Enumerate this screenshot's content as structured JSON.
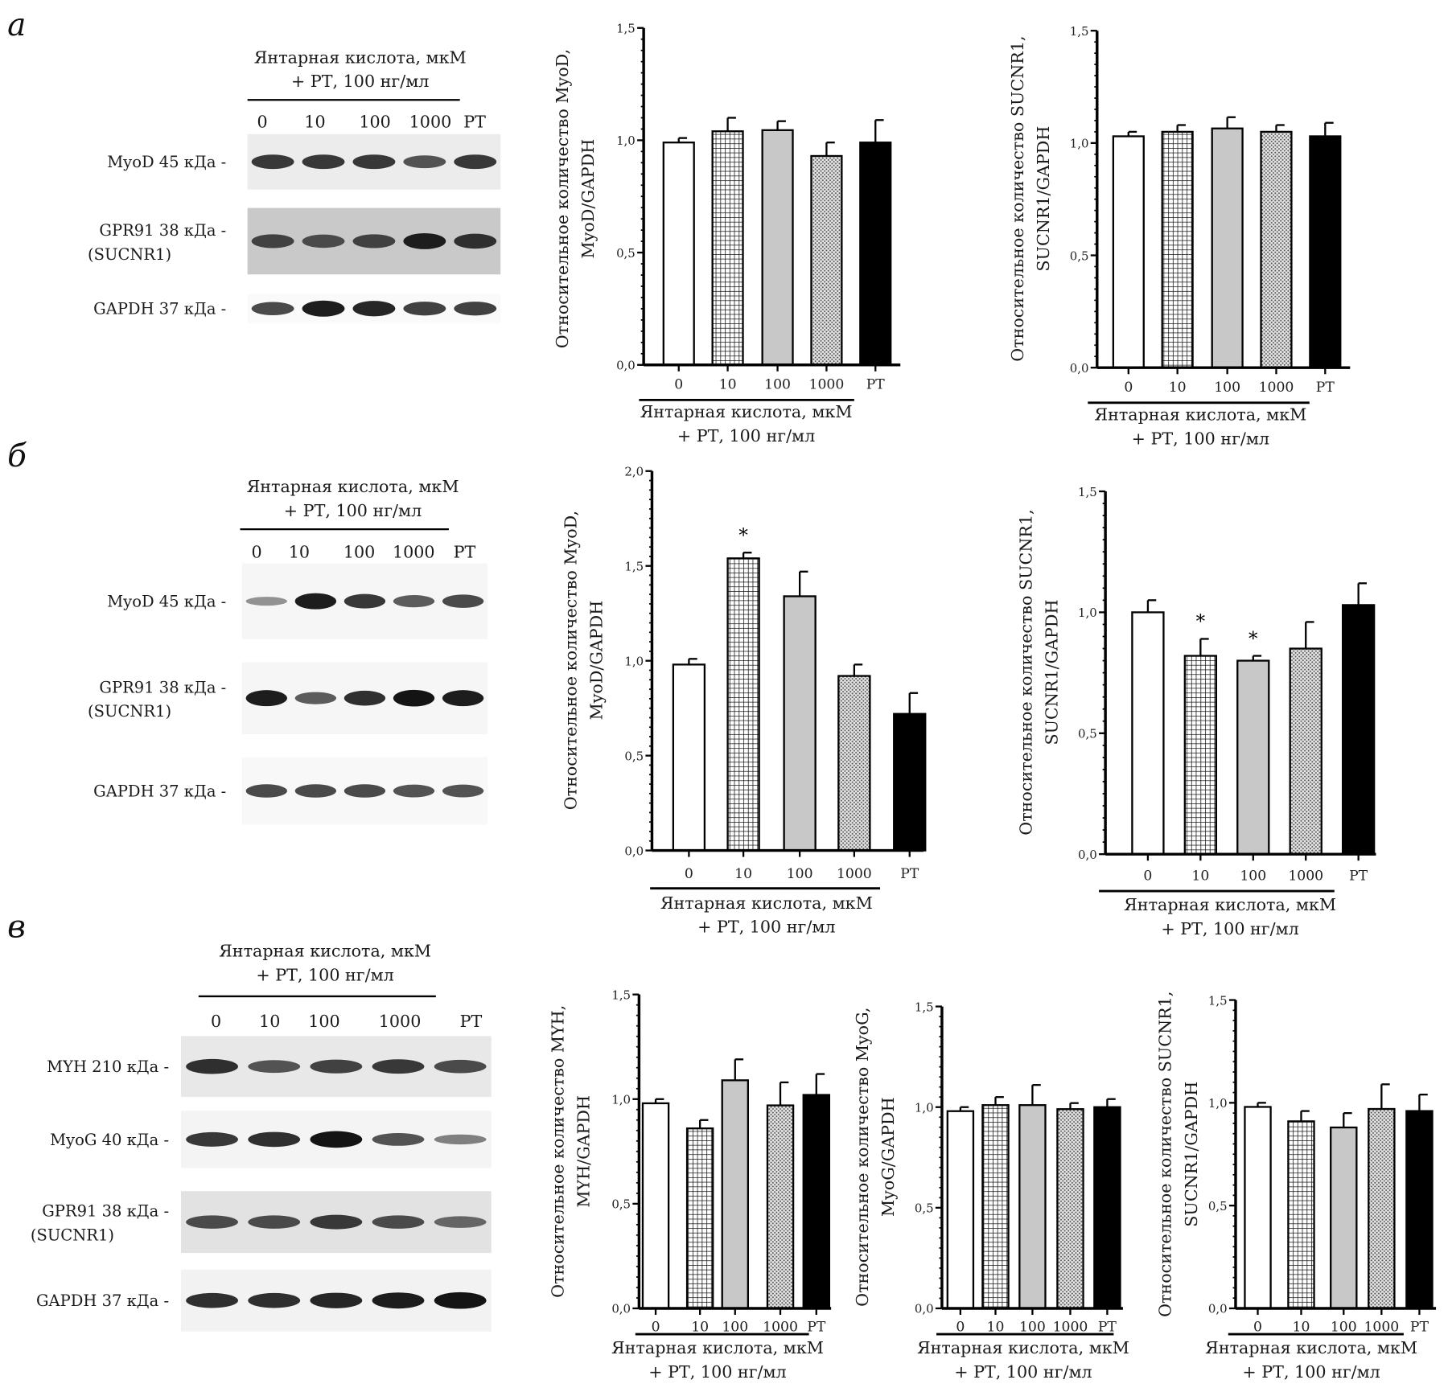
{
  "colors": {
    "bar_white": "#ffffff",
    "bar_gray": "#c8c8c8",
    "bar_black": "#000000",
    "axis": "#000000",
    "blot_bg": "#e6e6e6",
    "band": "#1e1e1e"
  },
  "bar_fills": [
    "white",
    "crosshatch",
    "light-gray",
    "dotted",
    "black"
  ],
  "panels": [
    {
      "letter": "а",
      "blot": {
        "heading": [
          "Янтарная кислота, мкМ",
          "+ РТ, 100 нг/мл"
        ],
        "lanes": [
          "0",
          "10",
          "100",
          "1000",
          "РТ"
        ],
        "rows": [
          {
            "label": [
              "MyoD 45 кДа -"
            ]
          },
          {
            "label": [
              "GPR91 38 кДа -",
              "(SUCNR1)"
            ]
          },
          {
            "label": [
              "GAPDH 37 кДа -"
            ]
          }
        ]
      }
    },
    {
      "letter": "б",
      "blot": {
        "heading": [
          "Янтарная кислота, мкМ",
          "+ РТ, 100 нг/мл"
        ],
        "lanes": [
          "0",
          "10",
          "100",
          "1000",
          "РТ"
        ],
        "rows": [
          {
            "label": [
              "MyoD 45 кДа -"
            ]
          },
          {
            "label": [
              "GPR91 38 кДа -",
              "(SUCNR1)"
            ]
          },
          {
            "label": [
              "GAPDH 37 кДа -"
            ]
          }
        ]
      }
    },
    {
      "letter": "в",
      "blot": {
        "heading": [
          "Янтарная кислота, мкМ",
          "+ РТ, 100 нг/мл"
        ],
        "lanes": [
          "0",
          "10",
          "100",
          "1000",
          "РТ"
        ],
        "rows": [
          {
            "label": [
              "MYH 210 кДа -"
            ]
          },
          {
            "label": [
              "MyoG 40 кДа -"
            ]
          },
          {
            "label": [
              "GPR91 38 кДа -",
              "(SUCNR1)"
            ]
          },
          {
            "label": [
              "GAPDH 37 кДа -"
            ]
          }
        ]
      }
    }
  ],
  "chart_data": [
    {
      "type": "bar",
      "panel": "а",
      "categories": [
        "0",
        "10",
        "100",
        "1000",
        "РТ"
      ],
      "values": [
        0.99,
        1.04,
        1.045,
        0.93,
        0.99
      ],
      "errors": [
        0.02,
        0.06,
        0.04,
        0.06,
        0.1
      ],
      "significance": [
        "",
        "",
        "",
        "",
        ""
      ],
      "ylabel": [
        "Относительное количество MyoD,",
        "MyoD/GAPDH"
      ],
      "xlabel": [
        "Янтарная кислота, мкМ",
        "+ РТ, 100 нг/мл"
      ],
      "yticks": [
        "0,0",
        "0,5",
        "1,0",
        "1,5"
      ],
      "ylim": [
        0,
        1.5
      ]
    },
    {
      "type": "bar",
      "panel": "а",
      "categories": [
        "0",
        "10",
        "100",
        "1000",
        "РТ"
      ],
      "values": [
        1.03,
        1.05,
        1.065,
        1.05,
        1.03
      ],
      "errors": [
        0.02,
        0.03,
        0.05,
        0.03,
        0.06
      ],
      "significance": [
        "",
        "",
        "",
        "",
        ""
      ],
      "ylabel": [
        "Относительное количество SUCNR1,",
        "SUCNR1/GAPDH"
      ],
      "xlabel": [
        "Янтарная кислота, мкМ",
        "+ РТ, 100 нг/мл"
      ],
      "yticks": [
        "0,0",
        "0,5",
        "1,0",
        "1,5"
      ],
      "ylim": [
        0,
        1.5
      ]
    },
    {
      "type": "bar",
      "panel": "б",
      "categories": [
        "0",
        "10",
        "100",
        "1000",
        "РТ"
      ],
      "values": [
        0.98,
        1.54,
        1.34,
        0.92,
        0.72
      ],
      "errors": [
        0.03,
        0.03,
        0.13,
        0.06,
        0.11
      ],
      "significance": [
        "",
        "*",
        "",
        "",
        ""
      ],
      "ylabel": [
        "Относительное количество MyoD,",
        "MyoD/GAPDH"
      ],
      "xlabel": [
        "Янтарная кислота, мкМ",
        "+ РТ, 100 нг/мл"
      ],
      "yticks": [
        "0,0",
        "0,5",
        "1,0",
        "1,5",
        "2,0"
      ],
      "ylim": [
        0,
        2.0
      ]
    },
    {
      "type": "bar",
      "panel": "б",
      "categories": [
        "0",
        "10",
        "100",
        "1000",
        "РТ"
      ],
      "values": [
        1.0,
        0.82,
        0.8,
        0.85,
        1.03
      ],
      "errors": [
        0.05,
        0.07,
        0.02,
        0.11,
        0.09
      ],
      "significance": [
        "",
        "*",
        "*",
        "",
        ""
      ],
      "ylabel": [
        "Относительное количество SUCNR1,",
        "SUCNR1/GAPDH"
      ],
      "xlabel": [
        "Янтарная кислота, мкМ",
        "+ РТ, 100 нг/мл"
      ],
      "yticks": [
        "0,0",
        "0,5",
        "1,0",
        "1,5"
      ],
      "ylim": [
        0,
        1.5
      ]
    },
    {
      "type": "bar",
      "panel": "в",
      "categories": [
        "0",
        "10",
        "100",
        "1000",
        "РТ"
      ],
      "values": [
        0.98,
        0.86,
        1.09,
        0.97,
        1.02
      ],
      "errors": [
        0.02,
        0.04,
        0.1,
        0.11,
        0.1
      ],
      "significance": [
        "",
        "",
        "",
        "",
        ""
      ],
      "ylabel": [
        "Относительное количество MYH,",
        "MYH/GAPDH"
      ],
      "xlabel": [
        "Янтарная кислота, мкМ",
        "+ РТ, 100 нг/мл"
      ],
      "yticks": [
        "0,0",
        "0,5",
        "1,0",
        "1,5"
      ],
      "ylim": [
        0,
        1.5
      ]
    },
    {
      "type": "bar",
      "panel": "в",
      "categories": [
        "0",
        "10",
        "100",
        "1000",
        "РТ"
      ],
      "values": [
        0.98,
        1.01,
        1.01,
        0.99,
        1.0
      ],
      "errors": [
        0.02,
        0.04,
        0.1,
        0.03,
        0.04
      ],
      "significance": [
        "",
        "",
        "",
        "",
        ""
      ],
      "ylabel": [
        "Относительное количество MyoG,",
        "MyoG/GAPDH"
      ],
      "xlabel": [
        "Янтарная кислота, мкМ",
        "+ РТ, 100 нг/мл"
      ],
      "yticks": [
        "0,0",
        "0,5",
        "1,0",
        "1,5"
      ],
      "ylim": [
        0,
        1.5
      ]
    },
    {
      "type": "bar",
      "panel": "в",
      "categories": [
        "0",
        "10",
        "100",
        "1000",
        "РТ"
      ],
      "values": [
        0.98,
        0.91,
        0.88,
        0.97,
        0.96
      ],
      "errors": [
        0.02,
        0.05,
        0.07,
        0.12,
        0.08
      ],
      "significance": [
        "",
        "",
        "",
        "",
        ""
      ],
      "ylabel": [
        "Относительное количество SUCNR1,",
        "SUCNR1/GAPDH"
      ],
      "xlabel": [
        "Янтарная кислота, мкМ",
        "+ РТ, 100 нг/мл"
      ],
      "yticks": [
        "0,0",
        "0,5",
        "1,0",
        "1,5"
      ],
      "ylim": [
        0,
        1.5
      ]
    }
  ]
}
